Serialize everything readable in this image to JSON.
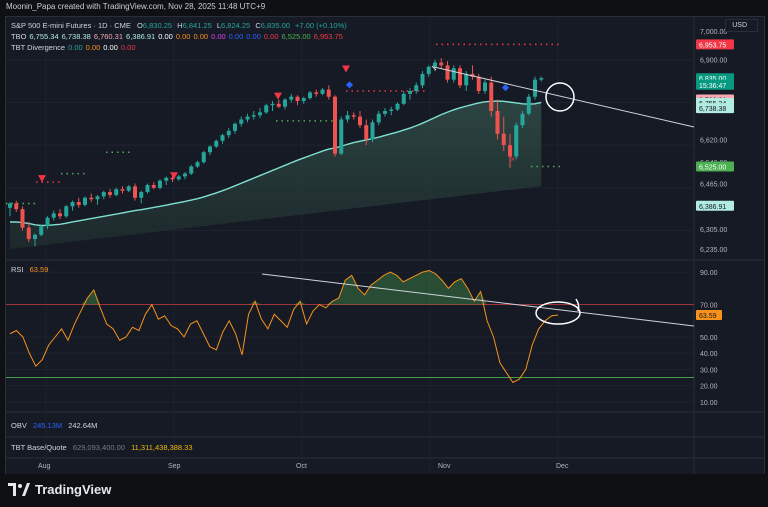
{
  "header": {
    "credit": "Moonin_Papa created with TradingView.com, Nov 28, 2025 11:48 UTC+9"
  },
  "legend": {
    "line1": {
      "name": "S&P 500 E-mini Futures · 1D · CME",
      "o_label": "O",
      "o": "6,830.25",
      "h_label": "H",
      "h": "6,841.25",
      "l_label": "L",
      "l": "6,824.25",
      "c_label": "C",
      "c": "6,835.00",
      "chg": "+7.00 (+0.10%)"
    },
    "line2": {
      "name": "TBO",
      "values": [
        "6,755.34",
        "6,738.38",
        "6,760.31",
        "6,386.91",
        "0.00",
        "0.00",
        "0.00",
        "0.00",
        "0.00",
        "0.00",
        "0.00",
        "6,525.00",
        "6,953.75"
      ]
    },
    "line3": {
      "name": "TBT Divergence",
      "values": [
        "0.00",
        "0.00",
        "0.00",
        "0.00"
      ]
    }
  },
  "currency_button": "USD",
  "price_axis": {
    "ticks": [
      "7,000.00",
      "6,900.00",
      "6,620.00",
      "6,540.00",
      "6,465.00",
      "6,305.00",
      "6,235.00"
    ],
    "labels": [
      {
        "text": "6,953.75",
        "color": "#f23645"
      },
      {
        "text": "6,835.00",
        "color": "#089981"
      },
      {
        "text": "15:36:47",
        "color": "#089981"
      },
      {
        "text": "6,760.31",
        "color": "#f7a9b4"
      },
      {
        "text": "6,755.34",
        "color": "#b2ebe0"
      },
      {
        "text": "6,738.38",
        "color": "#b2ebe0"
      },
      {
        "text": "6,525.00",
        "color": "#4caf50"
      },
      {
        "text": "6,386.91",
        "color": "#b2ebe0"
      }
    ]
  },
  "rsi_panel": {
    "name": "RSI",
    "value": "63.59",
    "ticks": [
      "90.00",
      "70.00",
      "50.00",
      "40.00",
      "30.00",
      "20.00",
      "10.00"
    ],
    "levels": [
      70,
      25
    ],
    "badge": "63.59"
  },
  "obv_panel": {
    "name": "OBV",
    "v1": "245.13M",
    "v2": "242.64M"
  },
  "tbt_panel": {
    "name": "TBT Base/Quote",
    "v1": "629,093,400.00",
    "v2": "11,311,438,388.33"
  },
  "time_axis": {
    "labels": [
      "Aug",
      "Sep",
      "Oct",
      "Nov",
      "Dec"
    ]
  },
  "brand": {
    "logo_text": "TradingView"
  },
  "colors": {
    "up": "#26a69a",
    "down": "#ef5350",
    "rsi": "#f7931a",
    "ma": "#7fe0d0",
    "trendline": "#cfd2d9"
  },
  "chart_data": {
    "type": "candlestick",
    "title": "S&P 500 E-mini Futures · 1D · CME",
    "ylim": [
      6200,
      7050
    ],
    "x_labels": [
      "Aug",
      "Sep",
      "Oct",
      "Nov",
      "Dec"
    ],
    "candles": [
      [
        6380,
        6400,
        6350,
        6395
      ],
      [
        6395,
        6405,
        6365,
        6375
      ],
      [
        6375,
        6385,
        6300,
        6310
      ],
      [
        6310,
        6330,
        6260,
        6270
      ],
      [
        6270,
        6290,
        6245,
        6285
      ],
      [
        6285,
        6320,
        6280,
        6315
      ],
      [
        6315,
        6350,
        6305,
        6345
      ],
      [
        6345,
        6370,
        6335,
        6360
      ],
      [
        6360,
        6375,
        6340,
        6350
      ],
      [
        6350,
        6390,
        6345,
        6385
      ],
      [
        6385,
        6405,
        6370,
        6400
      ],
      [
        6400,
        6415,
        6380,
        6390
      ],
      [
        6390,
        6420,
        6385,
        6415
      ],
      [
        6415,
        6430,
        6400,
        6410
      ],
      [
        6410,
        6425,
        6390,
        6420
      ],
      [
        6420,
        6440,
        6410,
        6435
      ],
      [
        6435,
        6445,
        6415,
        6425
      ],
      [
        6425,
        6450,
        6420,
        6445
      ],
      [
        6445,
        6455,
        6430,
        6440
      ],
      [
        6440,
        6460,
        6435,
        6455
      ],
      [
        6455,
        6465,
        6405,
        6415
      ],
      [
        6415,
        6440,
        6395,
        6435
      ],
      [
        6435,
        6465,
        6430,
        6460
      ],
      [
        6460,
        6470,
        6445,
        6450
      ],
      [
        6450,
        6480,
        6445,
        6475
      ],
      [
        6475,
        6490,
        6460,
        6485
      ],
      [
        6485,
        6495,
        6470,
        6480
      ],
      [
        6480,
        6495,
        6475,
        6490
      ],
      [
        6490,
        6505,
        6480,
        6500
      ],
      [
        6500,
        6530,
        6495,
        6525
      ],
      [
        6525,
        6545,
        6520,
        6540
      ],
      [
        6540,
        6580,
        6535,
        6575
      ],
      [
        6575,
        6600,
        6565,
        6595
      ],
      [
        6595,
        6620,
        6590,
        6615
      ],
      [
        6615,
        6640,
        6605,
        6635
      ],
      [
        6635,
        6660,
        6625,
        6650
      ],
      [
        6650,
        6680,
        6640,
        6675
      ],
      [
        6675,
        6700,
        6665,
        6690
      ],
      [
        6690,
        6710,
        6680,
        6700
      ],
      [
        6700,
        6720,
        6690,
        6705
      ],
      [
        6705,
        6730,
        6695,
        6715
      ],
      [
        6715,
        6745,
        6710,
        6740
      ],
      [
        6740,
        6755,
        6720,
        6745
      ],
      [
        6745,
        6760,
        6730,
        6735
      ],
      [
        6735,
        6765,
        6725,
        6760
      ],
      [
        6760,
        6780,
        6750,
        6770
      ],
      [
        6770,
        6775,
        6740,
        6755
      ],
      [
        6755,
        6770,
        6745,
        6765
      ],
      [
        6765,
        6790,
        6760,
        6785
      ],
      [
        6785,
        6795,
        6770,
        6780
      ],
      [
        6780,
        6800,
        6775,
        6795
      ],
      [
        6795,
        6810,
        6760,
        6770
      ],
      [
        6770,
        6775,
        6560,
        6570
      ],
      [
        6570,
        6700,
        6565,
        6690
      ],
      [
        6690,
        6720,
        6680,
        6705
      ],
      [
        6705,
        6715,
        6690,
        6700
      ],
      [
        6700,
        6720,
        6660,
        6670
      ],
      [
        6670,
        6690,
        6600,
        6620
      ],
      [
        6620,
        6690,
        6610,
        6680
      ],
      [
        6680,
        6720,
        6670,
        6710
      ],
      [
        6710,
        6730,
        6700,
        6720
      ],
      [
        6720,
        6735,
        6705,
        6725
      ],
      [
        6725,
        6750,
        6720,
        6745
      ],
      [
        6745,
        6790,
        6740,
        6780
      ],
      [
        6780,
        6800,
        6760,
        6790
      ],
      [
        6790,
        6820,
        6780,
        6810
      ],
      [
        6810,
        6860,
        6800,
        6850
      ],
      [
        6850,
        6880,
        6840,
        6875
      ],
      [
        6875,
        6900,
        6860,
        6890
      ],
      [
        6890,
        6905,
        6870,
        6880
      ],
      [
        6880,
        6895,
        6820,
        6830
      ],
      [
        6830,
        6880,
        6820,
        6870
      ],
      [
        6870,
        6880,
        6800,
        6810
      ],
      [
        6810,
        6860,
        6790,
        6850
      ],
      [
        6850,
        6880,
        6830,
        6840
      ],
      [
        6840,
        6850,
        6780,
        6790
      ],
      [
        6790,
        6830,
        6780,
        6820
      ],
      [
        6820,
        6840,
        6700,
        6720
      ],
      [
        6720,
        6760,
        6620,
        6640
      ],
      [
        6640,
        6700,
        6580,
        6600
      ],
      [
        6600,
        6640,
        6520,
        6560
      ],
      [
        6560,
        6680,
        6550,
        6670
      ],
      [
        6670,
        6720,
        6660,
        6710
      ],
      [
        6710,
        6780,
        6705,
        6770
      ],
      [
        6770,
        6840,
        6760,
        6830
      ],
      [
        6830,
        6841,
        6824,
        6835
      ]
    ],
    "moving_average": [
      6330,
      6330,
      6328,
      6325,
      6320,
      6318,
      6318,
      6320,
      6322,
      6326,
      6330,
      6334,
      6338,
      6342,
      6346,
      6350,
      6354,
      6358,
      6362,
      6366,
      6370,
      6373,
      6377,
      6381,
      6385,
      6389,
      6394,
      6398,
      6402,
      6407,
      6412,
      6418,
      6425,
      6432,
      6440,
      6448,
      6457,
      6466,
      6475,
      6484,
      6493,
      6502,
      6511,
      6520,
      6529,
      6538,
      6547,
      6555,
      6563,
      6571,
      6579,
      6586,
      6590,
      6596,
      6603,
      6609,
      6614,
      6618,
      6623,
      6628,
      6634,
      6640,
      6646,
      6653,
      6660,
      6668,
      6677,
      6687,
      6697,
      6707,
      6716,
      6724,
      6731,
      6737,
      6743,
      6748,
      6752,
      6754,
      6755,
      6754,
      6751,
      6748,
      6745,
      6744,
      6745,
      6750
    ],
    "levels": {
      "resistance": 6953.75,
      "support": 6525.0
    },
    "rsi": {
      "ylim": [
        0,
        100
      ],
      "values": [
        52,
        54,
        50,
        40,
        32,
        36,
        45,
        50,
        55,
        48,
        58,
        66,
        74,
        79,
        68,
        58,
        55,
        48,
        50,
        56,
        54,
        64,
        70,
        61,
        63,
        57,
        55,
        50,
        58,
        60,
        52,
        44,
        42,
        53,
        60,
        52,
        39,
        64,
        72,
        61,
        55,
        64,
        60,
        56,
        67,
        72,
        58,
        66,
        70,
        68,
        72,
        74,
        85,
        88,
        80,
        76,
        82,
        85,
        88,
        90,
        88,
        84,
        86,
        88,
        90,
        91,
        89,
        85,
        80,
        84,
        86,
        80,
        72,
        78,
        60,
        50,
        34,
        28,
        22,
        24,
        30,
        45,
        55,
        60,
        63,
        63.59
      ]
    }
  }
}
